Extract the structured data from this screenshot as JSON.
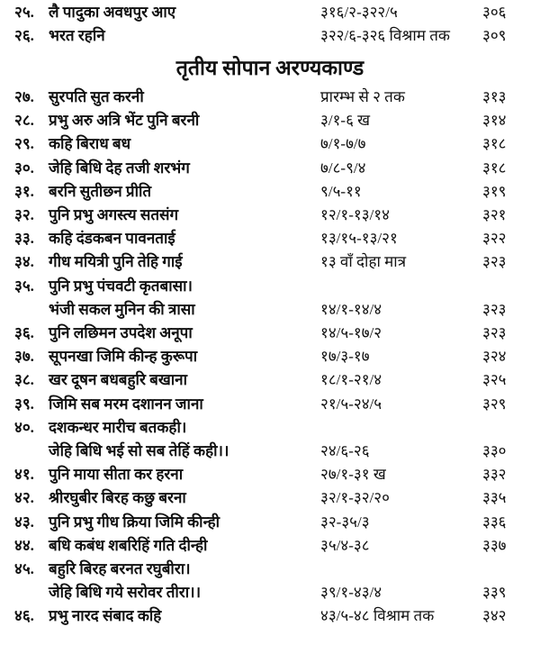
{
  "heading": "तृतीय सोपान अरण्यकाण्ड",
  "entries_before": [
    {
      "num": "२५.",
      "title": "लै पादुका अवधपुर आए",
      "ref": "३१६/२-३२२/५",
      "page": "३०६"
    },
    {
      "num": "२६.",
      "title": "भरत रहनि",
      "ref": "३२२/६-३२६ विश्राम तक",
      "page": "३०९"
    }
  ],
  "entries": [
    {
      "num": "२७.",
      "title": "सुरपति सुत करनी",
      "ref": "प्रारम्भ से २ तक",
      "page": "३१३"
    },
    {
      "num": "२८.",
      "title": "प्रभु अरु अत्रि भेंट पुनि बरनी",
      "ref": "३/१-६ ख",
      "page": "३१४"
    },
    {
      "num": "२९.",
      "title": "कहि बिराध बध",
      "ref": "७/१-७/७",
      "page": "३१८"
    },
    {
      "num": "३०.",
      "title": "जेहि बिधि देह तजी शरभंग",
      "ref": "७/८-९/४",
      "page": "३१८"
    },
    {
      "num": "३१.",
      "title": "बरनि सुतीछन प्रीति",
      "ref": "९/५-११",
      "page": "३१९"
    },
    {
      "num": "३२.",
      "title": "पुनि प्रभु अगस्त्य सतसंग",
      "ref": "१२/१-१३/१४",
      "page": "३२१"
    },
    {
      "num": "३३.",
      "title": "कहि दंडकबन पावनताई",
      "ref": "१३/१५-१३/२१",
      "page": "३२२"
    },
    {
      "num": "३४.",
      "title": "गीध मयित्री पुनि तेहि गाई",
      "ref": "१३ वाँ दोहा मात्र",
      "page": "३२३"
    },
    {
      "num": "३५.",
      "title": "पुनि प्रभु पंचवटी कृतबासा।",
      "ref": "",
      "page": ""
    },
    {
      "num": "",
      "title": "भंजी सकल मुनिन की त्रासा",
      "ref": "१४/१-१४/४",
      "page": "३२३"
    },
    {
      "num": "३६.",
      "title": "पुनि लछिमन उपदेश अनूपा",
      "ref": "१४/५-१७/२",
      "page": "३२३"
    },
    {
      "num": "३७.",
      "title": "सूपनखा जिमि कीन्ह कुरूपा",
      "ref": "१७/३-१७",
      "page": "३२४"
    },
    {
      "num": "३८.",
      "title": "खर दूषन बधबहुरि बखाना",
      "ref": "१८/१-२१/४",
      "page": "३२५"
    },
    {
      "num": "३९.",
      "title": "जिमि सब मरम दशानन जाना",
      "ref": "२१/५-२४/५",
      "page": "३२९"
    },
    {
      "num": "४०.",
      "title": "दशकन्धर मारीच बतकही।",
      "ref": "",
      "page": ""
    },
    {
      "num": "",
      "title": "जेहि बिधि भई सो सब तेहिं कही।।",
      "ref": "२४/६-२६",
      "page": "३३०"
    },
    {
      "num": "४१.",
      "title": "पुनि माया सीता कर हरना",
      "ref": "२७/१-३१ ख",
      "page": "३३२"
    },
    {
      "num": "४२.",
      "title": "श्रीरघुबीर बिरह कछु बरना",
      "ref": "३२/१-३२/२०",
      "page": "३३५"
    },
    {
      "num": "४३.",
      "title": "पुनि प्रभु गीध क्रिया जिमि कीन्ही",
      "ref": "३२-३५/३",
      "page": "३३६"
    },
    {
      "num": "४४.",
      "title": "बधि कबंध शबरिहिं गति दीन्ही",
      "ref": "३५/४-३८",
      "page": "३३७"
    },
    {
      "num": "४५.",
      "title": "बहुरि बिरह बरनत रघुबीरा।",
      "ref": "",
      "page": ""
    },
    {
      "num": "",
      "title": "जेहि बिधि गये सरोवर तीरा।।",
      "ref": "३९/१-४३/४",
      "page": "३३९"
    },
    {
      "num": "४६.",
      "title": "प्रभु नारद संबाद कहि",
      "ref": "४३/५-४८ विश्राम तक",
      "page": "३४२"
    }
  ]
}
